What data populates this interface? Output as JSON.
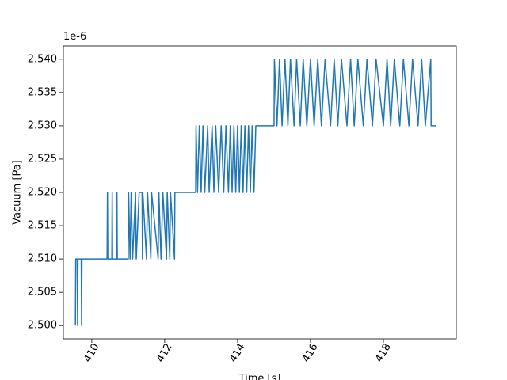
{
  "chart_data": {
    "type": "line",
    "xlabel": "Time [s]",
    "ylabel": "Vacuum [Pa]",
    "offset_text": "1e-6",
    "color": "#1f77b4",
    "x": [
      409.55,
      409.56,
      409.6,
      409.61,
      409.62,
      409.71,
      409.72,
      409.73,
      410.42,
      410.43,
      410.44,
      410.55,
      410.56,
      410.57,
      410.68,
      410.69,
      410.7,
      411.0,
      411.01,
      411.05,
      411.08,
      411.12,
      411.2,
      411.22,
      411.3,
      411.38,
      411.39,
      411.4,
      411.5,
      411.53,
      411.62,
      411.64,
      411.82,
      411.84,
      411.9,
      411.95,
      412.05,
      412.07,
      412.14,
      412.16,
      412.27,
      412.28,
      412.85,
      412.86,
      412.9,
      412.95,
      413.0,
      413.05,
      413.1,
      413.18,
      413.22,
      413.3,
      413.35,
      413.4,
      413.48,
      413.55,
      413.62,
      413.68,
      413.75,
      413.8,
      413.85,
      413.9,
      413.95,
      414.0,
      414.05,
      414.1,
      414.15,
      414.2,
      414.25,
      414.3,
      414.35,
      414.4,
      414.45,
      414.5,
      415.0,
      415.01,
      415.08,
      415.15,
      415.22,
      415.3,
      415.38,
      415.45,
      415.55,
      415.62,
      415.72,
      415.8,
      415.9,
      416.0,
      416.1,
      416.2,
      416.3,
      416.4,
      416.55,
      416.65,
      416.75,
      416.85,
      417.0,
      417.1,
      417.2,
      417.3,
      417.45,
      417.55,
      417.7,
      417.8,
      418.0,
      418.1,
      418.2,
      418.3,
      418.45,
      418.55,
      418.7,
      418.8,
      418.95,
      419.05,
      419.15,
      419.3,
      419.31,
      419.45
    ],
    "values": [
      2.5,
      2.51,
      2.51,
      2.5,
      2.51,
      2.51,
      2.5,
      2.51,
      2.51,
      2.52,
      2.51,
      2.51,
      2.52,
      2.51,
      2.51,
      2.52,
      2.51,
      2.51,
      2.52,
      2.51,
      2.52,
      2.51,
      2.52,
      2.51,
      2.52,
      2.52,
      2.51,
      2.52,
      2.51,
      2.52,
      2.51,
      2.52,
      2.51,
      2.52,
      2.51,
      2.52,
      2.51,
      2.52,
      2.51,
      2.52,
      2.51,
      2.52,
      2.52,
      2.53,
      2.52,
      2.53,
      2.52,
      2.53,
      2.52,
      2.53,
      2.52,
      2.53,
      2.52,
      2.53,
      2.52,
      2.53,
      2.52,
      2.53,
      2.52,
      2.53,
      2.52,
      2.53,
      2.52,
      2.53,
      2.52,
      2.53,
      2.52,
      2.53,
      2.52,
      2.53,
      2.52,
      2.53,
      2.52,
      2.53,
      2.53,
      2.54,
      2.53,
      2.54,
      2.53,
      2.54,
      2.53,
      2.54,
      2.53,
      2.54,
      2.53,
      2.54,
      2.53,
      2.54,
      2.53,
      2.54,
      2.53,
      2.54,
      2.53,
      2.54,
      2.53,
      2.54,
      2.53,
      2.54,
      2.53,
      2.54,
      2.53,
      2.54,
      2.53,
      2.54,
      2.53,
      2.54,
      2.53,
      2.54,
      2.53,
      2.54,
      2.53,
      2.54,
      2.53,
      2.54,
      2.53,
      2.54,
      2.53,
      2.53
    ],
    "xlim": [
      409.22,
      420.0
    ],
    "xticks": [
      410,
      412,
      414,
      416,
      418
    ],
    "ylim": [
      2.498,
      2.542
    ],
    "yticks": [
      {
        "value": 2.5,
        "label": "2.500"
      },
      {
        "value": 2.505,
        "label": "2.505"
      },
      {
        "value": 2.51,
        "label": "2.510"
      },
      {
        "value": 2.515,
        "label": "2.515"
      },
      {
        "value": 2.52,
        "label": "2.520"
      },
      {
        "value": 2.525,
        "label": "2.525"
      },
      {
        "value": 2.53,
        "label": "2.530"
      },
      {
        "value": 2.535,
        "label": "2.535"
      },
      {
        "value": 2.54,
        "label": "2.540"
      }
    ],
    "grid": false
  }
}
